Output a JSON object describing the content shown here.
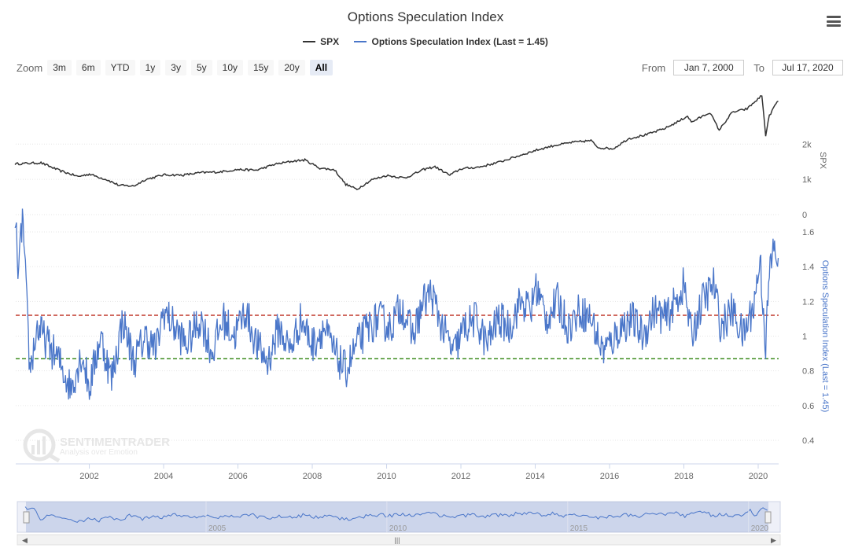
{
  "title": "Options Speculation Index",
  "legend": [
    {
      "name": "SPX",
      "color": "#333333"
    },
    {
      "name": "Options Speculation Index (Last = 1.45)",
      "color": "#4a76c9"
    }
  ],
  "zoom": {
    "label": "Zoom",
    "buttons": [
      "3m",
      "6m",
      "YTD",
      "1y",
      "3y",
      "5y",
      "10y",
      "15y",
      "20y",
      "All"
    ],
    "active": "All"
  },
  "range": {
    "from_label": "From",
    "from_value": "Jan 7, 2000",
    "to_label": "To",
    "to_value": "Jul 17, 2020"
  },
  "watermark": {
    "brand": "SENTIMENTRADER",
    "tagline": "Analysis over Emotion"
  },
  "chart_data": {
    "type": "line",
    "x_ticks": [
      "2002",
      "2004",
      "2006",
      "2008",
      "2010",
      "2012",
      "2014",
      "2016",
      "2018",
      "2020"
    ],
    "navigator_ticks": [
      "2005",
      "2010",
      "2015",
      "2020"
    ],
    "upper_panel": {
      "axis_title": "SPX",
      "ticks": [
        {
          "v": 2000,
          "label": "2k"
        },
        {
          "v": 1000,
          "label": "1k"
        },
        {
          "v": 0,
          "label": "0"
        }
      ],
      "series": {
        "name": "SPX",
        "color": "#333333",
        "points": [
          [
            2000.0,
            1440
          ],
          [
            2000.7,
            1470
          ],
          [
            2001.2,
            1250
          ],
          [
            2001.7,
            1080
          ],
          [
            2002.0,
            1150
          ],
          [
            2002.5,
            980
          ],
          [
            2002.8,
            830
          ],
          [
            2003.2,
            810
          ],
          [
            2003.5,
            990
          ],
          [
            2004.0,
            1130
          ],
          [
            2004.5,
            1120
          ],
          [
            2005.0,
            1190
          ],
          [
            2005.5,
            1210
          ],
          [
            2006.0,
            1280
          ],
          [
            2006.5,
            1260
          ],
          [
            2007.0,
            1430
          ],
          [
            2007.5,
            1520
          ],
          [
            2007.8,
            1550
          ],
          [
            2008.2,
            1320
          ],
          [
            2008.6,
            1270
          ],
          [
            2008.9,
            860
          ],
          [
            2009.2,
            720
          ],
          [
            2009.6,
            990
          ],
          [
            2010.0,
            1110
          ],
          [
            2010.5,
            1040
          ],
          [
            2011.0,
            1280
          ],
          [
            2011.3,
            1360
          ],
          [
            2011.7,
            1120
          ],
          [
            2012.0,
            1300
          ],
          [
            2012.5,
            1350
          ],
          [
            2013.0,
            1480
          ],
          [
            2013.5,
            1650
          ],
          [
            2014.0,
            1820
          ],
          [
            2014.5,
            1960
          ],
          [
            2015.0,
            2050
          ],
          [
            2015.5,
            2100
          ],
          [
            2015.7,
            1900
          ],
          [
            2016.1,
            1870
          ],
          [
            2016.5,
            2150
          ],
          [
            2017.0,
            2270
          ],
          [
            2017.5,
            2450
          ],
          [
            2017.9,
            2670
          ],
          [
            2018.1,
            2800
          ],
          [
            2018.2,
            2620
          ],
          [
            2018.7,
            2900
          ],
          [
            2018.95,
            2400
          ],
          [
            2019.3,
            2900
          ],
          [
            2019.7,
            3000
          ],
          [
            2020.1,
            3380
          ],
          [
            2020.2,
            2250
          ],
          [
            2020.3,
            2800
          ],
          [
            2020.45,
            3100
          ],
          [
            2020.54,
            3220
          ]
        ]
      }
    },
    "lower_panel": {
      "axis_title": "Options Speculation Index (Last = 1.45)",
      "ylim": [
        0.4,
        1.6
      ],
      "ticks": [
        1.6,
        1.4,
        1.2,
        1,
        0.8,
        0.6,
        0.4
      ],
      "reference_lines": [
        {
          "value": 1.12,
          "color": "#c0392b"
        },
        {
          "value": 0.87,
          "color": "#3c8c1e"
        }
      ],
      "series": {
        "name": "Options Speculation Index",
        "color": "#4a76c9",
        "points": [
          [
            2000.0,
            1.68
          ],
          [
            2000.1,
            1.35
          ],
          [
            2000.2,
            1.7
          ],
          [
            2000.3,
            1.25
          ],
          [
            2000.4,
            0.8
          ],
          [
            2000.6,
            1.05
          ],
          [
            2000.9,
            0.95
          ],
          [
            2001.2,
            0.85
          ],
          [
            2001.5,
            0.7
          ],
          [
            2001.8,
            0.9
          ],
          [
            2002.0,
            0.7
          ],
          [
            2002.3,
            1.0
          ],
          [
            2002.6,
            0.75
          ],
          [
            2002.9,
            1.1
          ],
          [
            2003.2,
            0.85
          ],
          [
            2003.5,
            1.0
          ],
          [
            2003.8,
            0.92
          ],
          [
            2004.0,
            1.15
          ],
          [
            2004.3,
            1.05
          ],
          [
            2004.6,
            0.95
          ],
          [
            2005.0,
            1.1
          ],
          [
            2005.3,
            0.9
          ],
          [
            2005.6,
            1.1
          ],
          [
            2005.9,
            1.0
          ],
          [
            2006.2,
            1.15
          ],
          [
            2006.5,
            0.95
          ],
          [
            2006.8,
            0.85
          ],
          [
            2007.1,
            1.05
          ],
          [
            2007.4,
            0.92
          ],
          [
            2007.7,
            1.1
          ],
          [
            2008.0,
            0.95
          ],
          [
            2008.3,
            1.05
          ],
          [
            2008.6,
            0.9
          ],
          [
            2008.9,
            0.8
          ],
          [
            2009.2,
            0.95
          ],
          [
            2009.5,
            1.05
          ],
          [
            2009.8,
            1.1
          ],
          [
            2010.1,
            1.05
          ],
          [
            2010.4,
            1.18
          ],
          [
            2010.7,
            1.0
          ],
          [
            2011.0,
            1.2
          ],
          [
            2011.2,
            1.25
          ],
          [
            2011.5,
            1.05
          ],
          [
            2011.8,
            0.9
          ],
          [
            2012.1,
            1.05
          ],
          [
            2012.4,
            1.1
          ],
          [
            2012.7,
            0.95
          ],
          [
            2013.0,
            1.1
          ],
          [
            2013.3,
            1.05
          ],
          [
            2013.6,
            1.2
          ],
          [
            2013.9,
            1.15
          ],
          [
            2014.0,
            1.3
          ],
          [
            2014.3,
            1.1
          ],
          [
            2014.6,
            1.2
          ],
          [
            2014.9,
            1.05
          ],
          [
            2015.2,
            1.15
          ],
          [
            2015.5,
            1.1
          ],
          [
            2015.8,
            0.92
          ],
          [
            2016.0,
            0.95
          ],
          [
            2016.3,
            1.05
          ],
          [
            2016.6,
            1.1
          ],
          [
            2016.9,
            1.0
          ],
          [
            2017.2,
            1.15
          ],
          [
            2017.5,
            1.1
          ],
          [
            2017.8,
            1.2
          ],
          [
            2018.0,
            1.3
          ],
          [
            2018.2,
            1.0
          ],
          [
            2018.5,
            1.2
          ],
          [
            2018.8,
            1.3
          ],
          [
            2019.0,
            1.05
          ],
          [
            2019.3,
            1.15
          ],
          [
            2019.6,
            1.0
          ],
          [
            2019.9,
            1.2
          ],
          [
            2020.05,
            1.45
          ],
          [
            2020.2,
            0.95
          ],
          [
            2020.3,
            1.35
          ],
          [
            2020.4,
            1.5
          ],
          [
            2020.54,
            1.45
          ]
        ]
      }
    }
  }
}
